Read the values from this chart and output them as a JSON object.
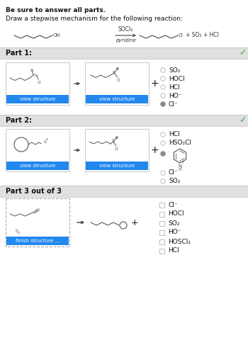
{
  "title_bold": "Be sure to answer all parts.",
  "subtitle": "Draw a stepwise mechanism for the following reaction:",
  "part1_label": "Part 1:",
  "part2_label": "Part 2:",
  "part3_label": "Part 3 out of 3",
  "part1_options": [
    "SO₂",
    "HOCl",
    "HCl",
    "HO⁻",
    "Cl⁻"
  ],
  "part1_selected": 4,
  "part2_options": [
    "HCl",
    "HSO₂Cl",
    "Cl⁻",
    "SO₂"
  ],
  "part2_selected": 1,
  "part3_options": [
    "Cl⁻",
    "HOCl",
    "SO₂",
    "HO⁻",
    "HOSCl₂",
    "HCl"
  ],
  "bg_color": "#ffffff",
  "part_header_bg": "#e0e0e0",
  "part_header_border": "#cccccc",
  "box_border": "#cccccc",
  "blue_btn": "#2288ee",
  "radio_unsel": "#bbbbbb",
  "radio_sel": "#888888",
  "text_color": "#111111",
  "gray_text": "#555555",
  "checkmark_color": "#44aa44",
  "dashed_border": "#aaaaaa"
}
